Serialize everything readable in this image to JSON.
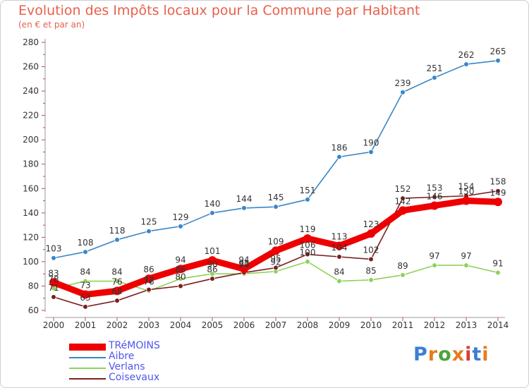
{
  "header": {
    "title": "Evolution des Impôts locaux pour la Commune par Habitant",
    "subtitle": "(en € et par an)"
  },
  "logo": {
    "text": "Proxiti",
    "colors": [
      "#3a7fd5",
      "#e87a1d",
      "#4aa43a",
      "#e87a1d",
      "#d93b3b",
      "#3a7fd5",
      "#e87a1d"
    ]
  },
  "chart_data": {
    "type": "line",
    "title": "Evolution des Impôts locaux pour la Commune par Habitant",
    "subtitle": "(en € et par an)",
    "x": [
      "2000",
      "2001",
      "2002",
      "2003",
      "2004",
      "2005",
      "2006",
      "2007",
      "2008",
      "2009",
      "2010",
      "2011",
      "2012",
      "2013",
      "2014"
    ],
    "ylim": [
      60,
      280
    ],
    "yticks": [
      60,
      80,
      100,
      120,
      140,
      160,
      180,
      200,
      220,
      240,
      260,
      280
    ],
    "grid": false,
    "legend_position": "bottom-left",
    "series": [
      {
        "name": "Verlans",
        "color": "#8fd25a",
        "values": [
          78,
          84,
          84,
          76,
          86,
          90,
          90,
          92,
          100,
          84,
          85,
          89,
          97,
          97,
          91
        ],
        "labels": [
          "78",
          "84",
          "84",
          "76",
          "86",
          "90",
          "90",
          "92",
          "100",
          "84",
          "85",
          "89",
          "97",
          "97",
          "91"
        ]
      },
      {
        "name": "Coisevaux",
        "color": "#7a1f1f",
        "values": [
          71,
          63,
          68,
          77,
          80,
          86,
          91,
          95,
          106,
          104,
          102,
          152,
          153,
          154,
          158
        ],
        "labels": [
          "71",
          "63",
          "68",
          "77",
          "80",
          "86",
          "91",
          "95",
          "106",
          "104",
          "102",
          "152",
          "153",
          "154",
          "158"
        ]
      },
      {
        "name": "Aibre",
        "color": "#3a86c8",
        "values": [
          103,
          108,
          118,
          125,
          129,
          140,
          144,
          145,
          151,
          186,
          190,
          239,
          251,
          262,
          265
        ],
        "labels": [
          "103",
          "108",
          "118",
          "125",
          "129",
          "140",
          "144",
          "145",
          "151",
          "186",
          "190",
          "239",
          "251",
          "262",
          "265"
        ]
      },
      {
        "name": "TRéMOINS",
        "color": "#ee0000",
        "values": [
          83,
          73,
          76,
          86,
          94,
          101,
          94,
          109,
          119,
          113,
          123,
          142,
          146,
          150,
          149
        ],
        "labels": [
          "83",
          "73",
          "76",
          "86",
          "94",
          "101",
          "94",
          "109",
          "119",
          "113",
          "123",
          "142",
          "146",
          "150",
          "149"
        ]
      }
    ],
    "legend": [
      {
        "name": "TRéMOINS",
        "color": "#ee0000"
      },
      {
        "name": "Aibre",
        "color": "#3a86c8"
      },
      {
        "name": "Verlans",
        "color": "#8fd25a"
      },
      {
        "name": "Coisevaux",
        "color": "#7a1f1f"
      }
    ]
  }
}
